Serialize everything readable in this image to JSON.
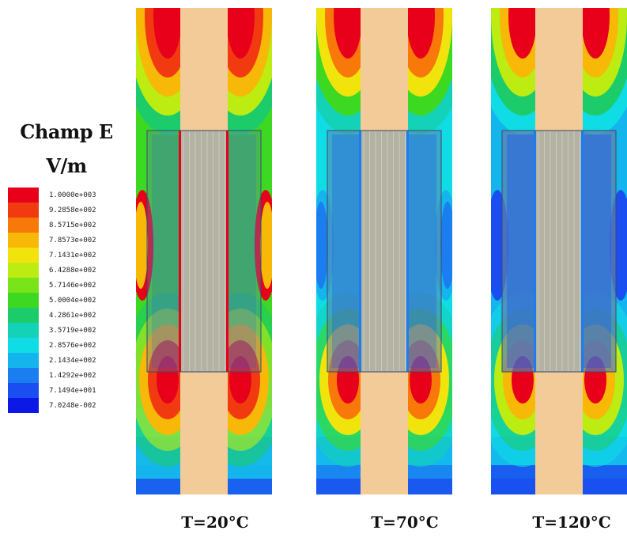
{
  "legend": {
    "title_line1": "Champ E",
    "title_line2": "V/m",
    "entries": [
      {
        "label": "1.0000e+003",
        "color": "#e8001a"
      },
      {
        "label": "9.2858e+002",
        "color": "#f23a10"
      },
      {
        "label": "8.5715e+002",
        "color": "#f8780a"
      },
      {
        "label": "7.8573e+002",
        "color": "#f8b808"
      },
      {
        "label": "7.1431e+002",
        "color": "#f0e40c"
      },
      {
        "label": "6.4288e+002",
        "color": "#bcec12"
      },
      {
        "label": "5.7146e+002",
        "color": "#7ae41a"
      },
      {
        "label": "5.0004e+002",
        "color": "#3cd822"
      },
      {
        "label": "4.2861e+002",
        "color": "#1ccc6a"
      },
      {
        "label": "3.5719e+002",
        "color": "#14d2b8"
      },
      {
        "label": "2.8576e+002",
        "color": "#10dce6"
      },
      {
        "label": "2.1434e+002",
        "color": "#14b4ec"
      },
      {
        "label": "1.4292e+002",
        "color": "#1a7ef0"
      },
      {
        "label": "7.1494e+001",
        "color": "#1a4ef0"
      },
      {
        "label": "7.0248e-002",
        "color": "#0c18e6"
      }
    ]
  },
  "panels": [
    {
      "caption": "T=20°C",
      "level": "high"
    },
    {
      "caption": "T=70°C",
      "level": "mid"
    },
    {
      "caption": "T=120°C",
      "level": "low"
    }
  ],
  "colors": {
    "conductor": "#f2cb98",
    "conductor_core": "#a9aea4",
    "insulation_overlay": "#5f7fb0"
  }
}
